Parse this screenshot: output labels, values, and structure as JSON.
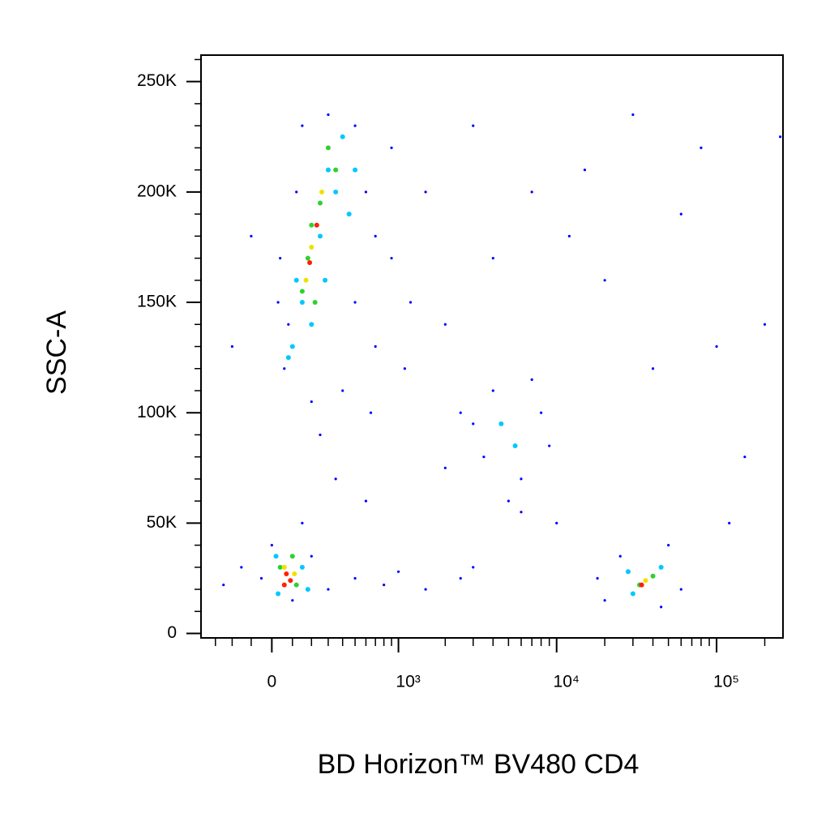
{
  "chart_data": {
    "type": "scatter",
    "xlabel": "BD Horizon™ BV480 CD4",
    "ylabel": "SSC-A",
    "xscale": "biexponential",
    "xlim": [
      -400,
      260000
    ],
    "ylim": [
      -2000,
      262000
    ],
    "xticks": [
      0,
      {
        "value": 1000,
        "label": "10³"
      },
      {
        "value": 10000,
        "label": "10⁴"
      },
      {
        "value": 100000,
        "label": "10⁵"
      }
    ],
    "xminorticks": [
      -300,
      -200,
      -100,
      100,
      200,
      300,
      400,
      500,
      600,
      700,
      800,
      900,
      2000,
      3000,
      4000,
      5000,
      6000,
      7000,
      8000,
      9000,
      20000,
      30000,
      40000,
      50000,
      60000,
      70000,
      80000,
      90000,
      200000
    ],
    "yticks": [
      0,
      {
        "value": 50000,
        "label": "50K"
      },
      {
        "value": 100000,
        "label": "100K"
      },
      {
        "value": 150000,
        "label": "150K"
      },
      {
        "value": 200000,
        "label": "200K"
      },
      {
        "value": 250000,
        "label": "250K"
      }
    ],
    "yminorticks": [
      10000,
      20000,
      30000,
      40000,
      60000,
      70000,
      80000,
      90000,
      110000,
      120000,
      130000,
      140000,
      160000,
      170000,
      180000,
      190000,
      210000,
      220000,
      230000,
      240000,
      260000
    ],
    "series": [
      {
        "color": "#0000ff",
        "x": [
          60,
          80,
          120,
          150,
          300,
          500,
          600,
          700,
          900,
          1200,
          40,
          30,
          500,
          700,
          400,
          200,
          1500,
          2000,
          900,
          1100,
          650,
          -100,
          -200,
          250,
          350,
          600,
          -150,
          -50,
          0,
          200,
          300,
          500,
          800,
          1000,
          1500,
          2500,
          3000,
          150,
          100,
          -250,
          2500,
          3500,
          4000,
          6000,
          8000,
          9000,
          5000,
          3000,
          7000,
          6000,
          2000,
          10000,
          20000,
          25000,
          50000,
          60000,
          18000,
          45000,
          15000,
          30000,
          60000,
          80000,
          20000,
          40000,
          100000,
          150000,
          200000,
          120000,
          250000,
          4000,
          7000,
          3000,
          12000
        ],
        "y": [
          120000,
          140000,
          200000,
          230000,
          235000,
          230000,
          200000,
          180000,
          170000,
          150000,
          170000,
          150000,
          150000,
          130000,
          110000,
          105000,
          200000,
          140000,
          220000,
          120000,
          100000,
          180000,
          130000,
          90000,
          70000,
          60000,
          30000,
          25000,
          40000,
          35000,
          20000,
          25000,
          22000,
          28000,
          20000,
          25000,
          30000,
          50000,
          15000,
          22000,
          100000,
          80000,
          110000,
          70000,
          100000,
          85000,
          60000,
          95000,
          115000,
          55000,
          75000,
          50000,
          15000,
          35000,
          40000,
          20000,
          25000,
          12000,
          210000,
          235000,
          190000,
          220000,
          160000,
          120000,
          130000,
          80000,
          140000,
          50000,
          225000,
          170000,
          200000,
          230000,
          180000
        ]
      },
      {
        "color": "#00c8ff",
        "x": [
          100,
          150,
          250,
          300,
          400,
          200,
          350,
          450,
          120,
          500,
          80,
          280,
          20,
          150,
          180,
          30,
          4500,
          5500,
          30000,
          45000,
          28000
        ],
        "y": [
          130000,
          150000,
          180000,
          210000,
          225000,
          140000,
          200000,
          190000,
          160000,
          210000,
          125000,
          160000,
          35000,
          30000,
          20000,
          18000,
          95000,
          85000,
          18000,
          30000,
          28000
        ]
      },
      {
        "color": "#30d030",
        "x": [
          180,
          250,
          300,
          220,
          350,
          150,
          200,
          40,
          120,
          100,
          33000,
          40000
        ],
        "y": [
          170000,
          195000,
          220000,
          150000,
          210000,
          155000,
          185000,
          30000,
          22000,
          35000,
          22000,
          26000
        ]
      },
      {
        "color": "#f0e000",
        "x": [
          200,
          260,
          170,
          60,
          110,
          36000
        ],
        "y": [
          175000,
          200000,
          160000,
          30000,
          27000,
          24000
        ]
      },
      {
        "color": "#ff2000",
        "x": [
          190,
          230,
          70,
          90,
          60,
          34000
        ],
        "y": [
          168000,
          185000,
          27000,
          24000,
          22000,
          22000
        ]
      }
    ]
  }
}
